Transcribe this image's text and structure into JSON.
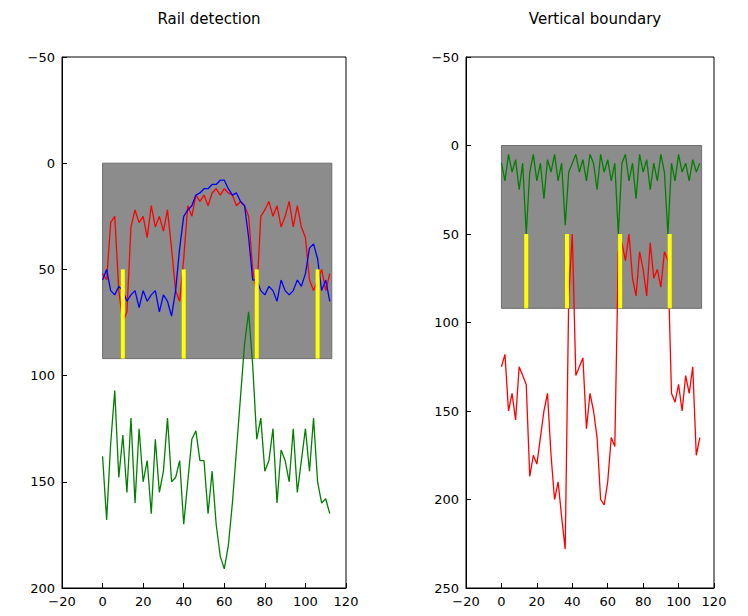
{
  "chart_data": [
    {
      "type": "line",
      "title": "Rail detection",
      "xlim": [
        -20,
        120
      ],
      "xticks": [
        {
          "value": -20,
          "label": "−20"
        },
        0,
        20,
        40,
        60,
        80,
        100,
        120
      ],
      "ylim": [
        200,
        -50
      ],
      "yticks": [
        {
          "value": -50,
          "label": "−50"
        },
        0,
        50,
        100,
        150,
        200
      ],
      "grid": false,
      "image": {
        "x": [
          0,
          113
        ],
        "y": [
          0,
          92
        ]
      },
      "x": [
        0,
        2,
        4,
        6,
        8,
        10,
        12,
        14,
        16,
        18,
        20,
        22,
        24,
        26,
        28,
        30,
        32,
        34,
        36,
        38,
        40,
        42,
        44,
        46,
        48,
        50,
        52,
        54,
        56,
        58,
        60,
        62,
        64,
        66,
        68,
        70,
        72,
        74,
        76,
        78,
        80,
        82,
        84,
        86,
        88,
        90,
        92,
        94,
        96,
        98,
        100,
        102,
        104,
        106,
        108,
        110,
        112
      ],
      "series": [
        {
          "color": "#ff0000",
          "values": [
            52,
            55,
            28,
            25,
            60,
            75,
            70,
            30,
            22,
            28,
            25,
            35,
            20,
            30,
            25,
            32,
            22,
            40,
            60,
            65,
            45,
            20,
            25,
            15,
            18,
            15,
            20,
            14,
            12,
            15,
            12,
            14,
            15,
            20,
            18,
            20,
            25,
            50,
            62,
            25,
            22,
            18,
            25,
            20,
            30,
            25,
            18,
            30,
            20,
            30,
            35,
            55,
            60,
            55,
            50,
            60,
            52
          ]
        },
        {
          "color": "#0000ff",
          "values": [
            55,
            50,
            60,
            62,
            58,
            60,
            65,
            62,
            60,
            68,
            60,
            65,
            62,
            60,
            70,
            62,
            65,
            72,
            60,
            40,
            25,
            22,
            20,
            15,
            14,
            12,
            12,
            10,
            10,
            8,
            8,
            12,
            15,
            14,
            18,
            20,
            35,
            55,
            55,
            60,
            62,
            58,
            60,
            65,
            55,
            60,
            62,
            60,
            55,
            58,
            52,
            40,
            38,
            45,
            60,
            55,
            65
          ]
        },
        {
          "color": "#008000",
          "values": [
            138,
            168,
            132,
            107,
            148,
            128,
            155,
            120,
            160,
            125,
            150,
            140,
            165,
            130,
            155,
            145,
            120,
            150,
            148,
            140,
            170,
            150,
            130,
            126,
            140,
            140,
            165,
            145,
            170,
            185,
            191,
            180,
            160,
            135,
            110,
            85,
            70,
            95,
            130,
            120,
            145,
            140,
            125,
            160,
            135,
            140,
            150,
            125,
            155,
            140,
            125,
            145,
            120,
            150,
            160,
            158,
            165
          ]
        }
      ],
      "vertical_bars": {
        "color": "#ffff00",
        "x": [
          10,
          40,
          76,
          106
        ],
        "y": [
          50,
          92
        ]
      }
    },
    {
      "type": "line",
      "title": "Vertical boundary",
      "xlim": [
        -20,
        120
      ],
      "xticks": [
        {
          "value": -20,
          "label": "−20"
        },
        0,
        20,
        40,
        60,
        80,
        100,
        120
      ],
      "ylim": [
        250,
        -50
      ],
      "yticks": [
        {
          "value": -50,
          "label": "−50"
        },
        0,
        50,
        100,
        150,
        200,
        250
      ],
      "grid": false,
      "image": {
        "x": [
          0,
          113
        ],
        "y": [
          0,
          92
        ]
      },
      "x": [
        0,
        2,
        4,
        6,
        8,
        10,
        12,
        14,
        16,
        18,
        20,
        22,
        24,
        26,
        28,
        30,
        32,
        34,
        36,
        38,
        40,
        42,
        44,
        46,
        48,
        50,
        52,
        54,
        56,
        58,
        60,
        62,
        64,
        66,
        68,
        70,
        72,
        74,
        76,
        78,
        80,
        82,
        84,
        86,
        88,
        90,
        92,
        94,
        96,
        98,
        100,
        102,
        104,
        106,
        108,
        110,
        112
      ],
      "series": [
        {
          "color": "#008000",
          "values": [
            10,
            20,
            5,
            15,
            8,
            25,
            10,
            50,
            15,
            5,
            20,
            10,
            30,
            8,
            15,
            5,
            20,
            10,
            45,
            15,
            10,
            5,
            15,
            8,
            20,
            5,
            10,
            25,
            5,
            15,
            8,
            20,
            10,
            50,
            10,
            5,
            20,
            10,
            30,
            5,
            15,
            8,
            25,
            10,
            20,
            5,
            15,
            50,
            10,
            20,
            5,
            15,
            10,
            20,
            8,
            15,
            10
          ]
        },
        {
          "color": "#ff0000",
          "values": [
            125,
            118,
            150,
            140,
            155,
            125,
            130,
            135,
            187,
            175,
            180,
            165,
            150,
            140,
            175,
            200,
            190,
            210,
            228,
            85,
            50,
            130,
            125,
            120,
            160,
            140,
            150,
            165,
            200,
            203,
            190,
            165,
            170,
            60,
            55,
            65,
            50,
            75,
            85,
            60,
            70,
            85,
            55,
            75,
            70,
            80,
            60,
            65,
            140,
            145,
            135,
            150,
            130,
            140,
            125,
            175,
            165
          ]
        }
      ],
      "vertical_bars": {
        "color": "#ffff00",
        "x": [
          14,
          37,
          67,
          95
        ],
        "y": [
          50,
          92
        ]
      }
    }
  ]
}
